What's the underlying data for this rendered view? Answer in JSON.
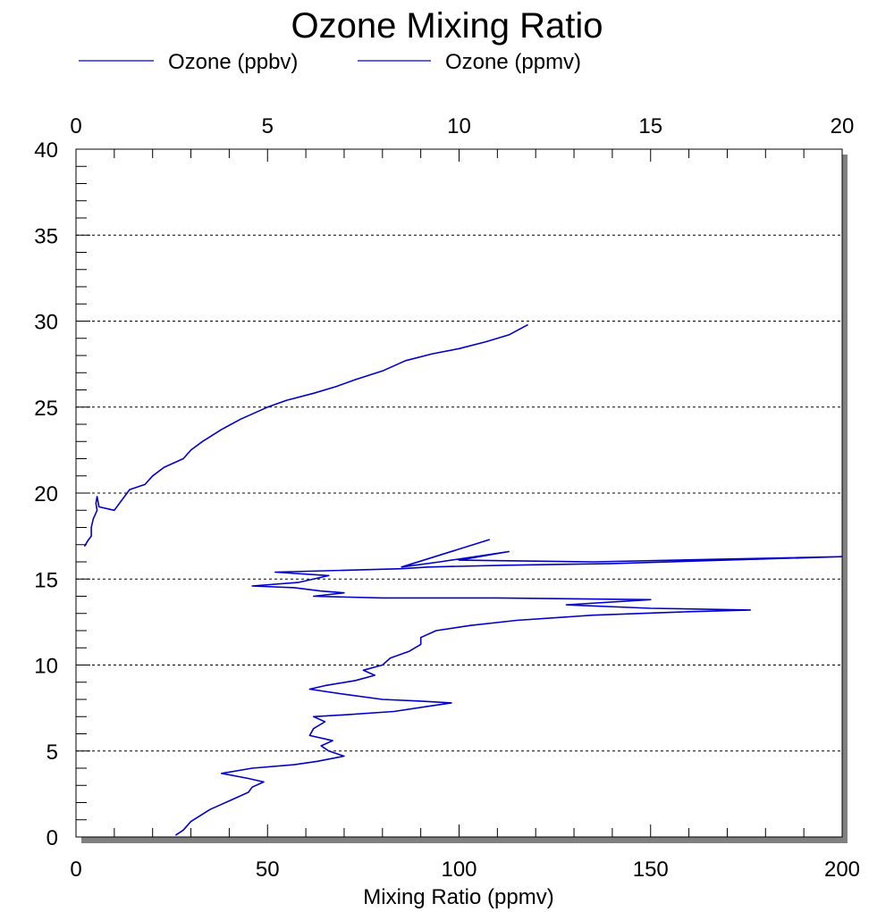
{
  "chart_data": {
    "type": "line",
    "title": "Ozone Mixing Ratio",
    "xlabel": "Mixing Ratio (ppmv)",
    "ylabel": "",
    "xlim": [
      0,
      200
    ],
    "ylim": [
      0,
      40
    ],
    "top_xlim": [
      0,
      20
    ],
    "x_ticks": [
      0,
      50,
      100,
      150,
      200
    ],
    "top_x_ticks": [
      0,
      5,
      10,
      15,
      20
    ],
    "y_ticks": [
      0,
      5,
      10,
      15,
      20,
      25,
      30,
      35,
      40
    ],
    "grid": "horizontal dashed",
    "legend_position": "top-left",
    "colors": {
      "series": "#0000c8",
      "shadow": "#808080",
      "axis": "#000000"
    },
    "series": [
      {
        "name": "Ozone (ppbv)",
        "axis": "bottom",
        "points": [
          [
            26,
            0.1
          ],
          [
            28,
            0.4
          ],
          [
            30,
            0.9
          ],
          [
            35,
            1.6
          ],
          [
            40,
            2.1
          ],
          [
            45,
            2.6
          ],
          [
            46,
            2.9
          ],
          [
            49,
            3.2
          ],
          [
            45,
            3.4
          ],
          [
            38,
            3.7
          ],
          [
            46,
            4.0
          ],
          [
            57,
            4.2
          ],
          [
            63,
            4.4
          ],
          [
            70,
            4.7
          ],
          [
            66,
            5.0
          ],
          [
            64,
            5.3
          ],
          [
            67,
            5.6
          ],
          [
            61,
            5.9
          ],
          [
            62,
            6.3
          ],
          [
            65,
            6.7
          ],
          [
            62,
            7.0
          ],
          [
            70,
            7.1
          ],
          [
            83,
            7.3
          ],
          [
            92,
            7.6
          ],
          [
            98,
            7.8
          ],
          [
            90,
            7.9
          ],
          [
            80,
            8.0
          ],
          [
            70,
            8.3
          ],
          [
            61,
            8.6
          ],
          [
            65,
            8.8
          ],
          [
            73,
            9.1
          ],
          [
            78,
            9.4
          ],
          [
            75,
            9.7
          ],
          [
            80,
            10.0
          ],
          [
            82,
            10.4
          ],
          [
            87,
            10.8
          ],
          [
            90,
            11.2
          ],
          [
            90,
            11.6
          ],
          [
            94,
            12.0
          ],
          [
            103,
            12.3
          ],
          [
            115,
            12.6
          ],
          [
            135,
            12.9
          ],
          [
            160,
            13.1
          ],
          [
            176,
            13.2
          ],
          [
            150,
            13.3
          ],
          [
            128,
            13.5
          ],
          [
            150,
            13.8
          ],
          [
            110,
            13.9
          ],
          [
            80,
            13.9
          ],
          [
            62,
            14.0
          ],
          [
            70,
            14.2
          ],
          [
            64,
            14.3
          ],
          [
            57,
            14.5
          ],
          [
            46,
            14.6
          ],
          [
            58,
            14.8
          ],
          [
            66,
            15.2
          ],
          [
            52,
            15.4
          ],
          [
            85,
            15.6
          ],
          [
            92,
            15.7
          ],
          [
            112,
            15.8
          ],
          [
            140,
            15.9
          ],
          [
            200,
            16.3
          ],
          [
            135,
            16.0
          ],
          [
            100,
            16.1
          ],
          [
            113,
            16.6
          ],
          [
            95,
            16.0
          ],
          [
            85,
            15.7
          ],
          [
            108,
            17.3
          ]
        ]
      },
      {
        "name": "Ozone (ppmv)",
        "axis": "top",
        "points": [
          [
            0.22,
            16.9
          ],
          [
            0.3,
            17.2
          ],
          [
            0.4,
            17.5
          ],
          [
            0.4,
            18.0
          ],
          [
            0.45,
            18.5
          ],
          [
            0.55,
            19.0
          ],
          [
            0.52,
            19.4
          ],
          [
            0.55,
            19.8
          ],
          [
            0.6,
            19.2
          ],
          [
            1.0,
            19.0
          ],
          [
            1.4,
            20.2
          ],
          [
            1.8,
            20.5
          ],
          [
            2.0,
            21.0
          ],
          [
            2.3,
            21.5
          ],
          [
            2.8,
            22.0
          ],
          [
            3.0,
            22.5
          ],
          [
            3.3,
            23.0
          ],
          [
            3.8,
            23.7
          ],
          [
            4.3,
            24.3
          ],
          [
            5.0,
            25.0
          ],
          [
            5.5,
            25.4
          ],
          [
            6.2,
            25.8
          ],
          [
            6.8,
            26.2
          ],
          [
            7.3,
            26.6
          ],
          [
            8.0,
            27.1
          ],
          [
            8.6,
            27.7
          ],
          [
            9.3,
            28.1
          ],
          [
            10.0,
            28.4
          ],
          [
            10.7,
            28.8
          ],
          [
            11.3,
            29.2
          ],
          [
            11.8,
            29.8
          ]
        ]
      }
    ]
  }
}
